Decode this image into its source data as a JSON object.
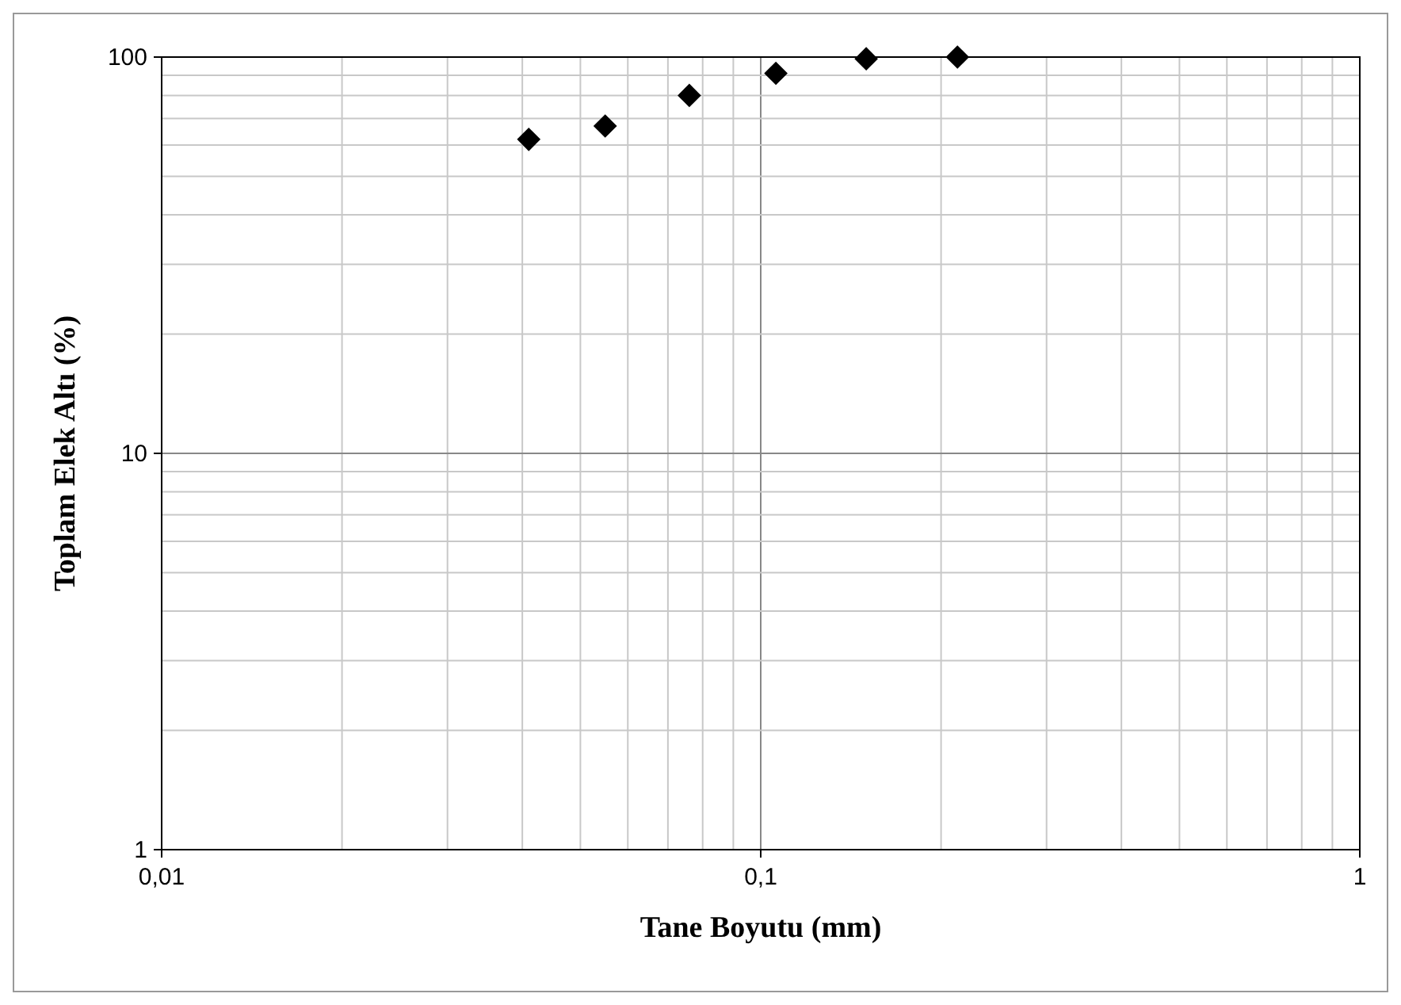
{
  "chart_data": {
    "type": "scatter",
    "xlabel": "Tane Boyutu (mm)",
    "ylabel": "Toplam Elek Altı (%)",
    "x": [
      0.041,
      0.055,
      0.076,
      0.106,
      0.15,
      0.213
    ],
    "series": [
      {
        "color": "#000000",
        "values": [
          62,
          67,
          80,
          91,
          99,
          100
        ]
      }
    ],
    "xlim": [
      0.01,
      1
    ],
    "ylim": [
      1,
      100
    ],
    "xticks": [
      {
        "value": 0.01,
        "label": "0,01"
      },
      {
        "value": 0.1,
        "label": "0,1"
      },
      1
    ],
    "yticks": [
      1,
      10,
      100
    ],
    "log": "xy",
    "grid": true,
    "marker": "diamond"
  }
}
